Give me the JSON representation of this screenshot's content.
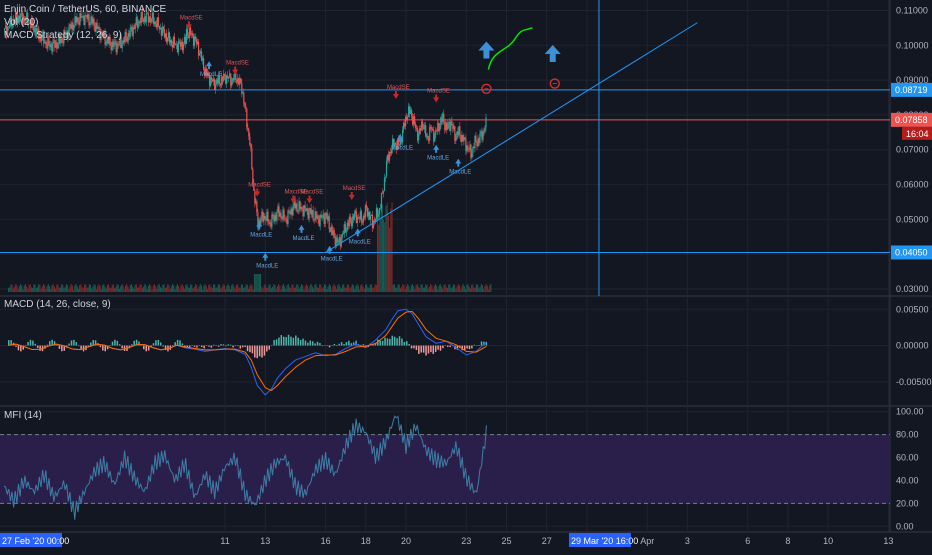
{
  "header": {
    "title": "Enjin Coin / TetherUS, 60, BINANCE",
    "vol_label": "Vol (20)",
    "strategy_label": "MACD Strategy (12, 26, 9)"
  },
  "macd_panel": {
    "title": "MACD (14, 26, close, 9)"
  },
  "mfi_panel": {
    "title": "MFI (14)"
  },
  "colors": {
    "background": "#131722",
    "grid": "#1f2430",
    "up": "#26a69a",
    "down": "#ef5350",
    "line_blue": "#2196f3",
    "macd_line": "#2962ff",
    "signal_line": "#ff6d00",
    "mfi_line": "#3d7ea6",
    "mfi_band": "#2a1f4a",
    "annotation_green": "#00e600",
    "arrow_blue": "#3d8fd6",
    "red_price": "#b71c1c",
    "badge_dark": "#ffffff"
  },
  "chart_data": [
    {
      "type": "candlestick",
      "symbol": "Enjin Coin / TetherUS",
      "interval": "60",
      "exchange": "BINANCE",
      "ylim": [
        0.028,
        0.113
      ],
      "yticks": [
        "0.11000",
        "0.10000",
        "0.09000",
        "0.08000",
        "0.07000",
        "0.06000",
        "0.05000",
        "0.04000",
        "0.03000"
      ],
      "ytick_values": [
        0.11,
        0.1,
        0.09,
        0.08,
        0.07,
        0.06,
        0.05,
        0.04,
        0.03
      ],
      "xticks": [
        "27 Feb '20",
        "11",
        "13",
        "16",
        "18",
        "20",
        "23",
        "25",
        "27",
        "29 Mar '20",
        "Apr",
        "3",
        "6",
        "8",
        "10",
        "13"
      ],
      "xtick_days": [
        0,
        11,
        13,
        16,
        18,
        20,
        23,
        25,
        27,
        29,
        32,
        34,
        37,
        39,
        41,
        44
      ],
      "x_label_first": "27 Feb '20  00:00",
      "x_label_cursor": "29 Mar '20  16:00",
      "price_path_days": [
        9,
        9.3,
        9.6,
        10,
        10.4,
        10.8,
        11,
        11.3,
        11.5,
        11.8,
        12,
        12.2,
        12.4,
        12.6,
        12.9,
        13.2,
        13.6,
        14,
        14.4,
        14.8,
        15.2,
        15.6,
        16,
        16.3,
        16.6,
        17,
        17.4,
        17.8,
        18,
        18.3,
        18.6,
        18.8,
        19,
        19.2,
        19.4,
        19.6,
        19.8,
        20,
        20.2,
        20.4,
        20.6,
        20.8,
        21,
        21.2,
        21.4,
        21.6,
        21.8,
        22,
        22.2,
        22.4,
        22.6,
        22.8,
        23,
        23.2,
        23.4,
        23.6,
        23.8,
        24
      ],
      "price_path_values": [
        0.104,
        0.103,
        0.1,
        0.092,
        0.089,
        0.09,
        0.091,
        0.09,
        0.091,
        0.088,
        0.08,
        0.072,
        0.058,
        0.049,
        0.051,
        0.049,
        0.052,
        0.05,
        0.054,
        0.053,
        0.052,
        0.05,
        0.051,
        0.046,
        0.043,
        0.048,
        0.051,
        0.05,
        0.053,
        0.049,
        0.052,
        0.057,
        0.066,
        0.07,
        0.072,
        0.071,
        0.075,
        0.08,
        0.081,
        0.077,
        0.074,
        0.078,
        0.073,
        0.076,
        0.074,
        0.077,
        0.079,
        0.076,
        0.078,
        0.074,
        0.075,
        0.073,
        0.071,
        0.069,
        0.072,
        0.073,
        0.075,
        0.078
      ],
      "horizontal_levels": [
        {
          "value": 0.08719,
          "label": "0.08719",
          "color": "#2196f3"
        },
        {
          "value": 0.07858,
          "label": "0.07858",
          "color": "#ef5350"
        },
        {
          "value": 0.0405,
          "label": "0.04050",
          "color": "#2196f3"
        }
      ],
      "countdown": "16:04",
      "trendline": {
        "from_day": 16,
        "from_value": 0.0405,
        "to_day": 34.5,
        "to_value": 0.1065
      },
      "crosshair": {
        "day": 29.6,
        "value": 0.08719
      },
      "volume_ylim": [
        0,
        1
      ]
    },
    {
      "type": "line",
      "title": "MACD (14, 26, close, 9)",
      "ylim": [
        -0.0075,
        0.006
      ],
      "yticks": [
        "0.00500",
        "0.00000",
        "-0.00500"
      ],
      "ytick_values": [
        0.005,
        0.0,
        -0.005
      ],
      "x": [
        9,
        9.5,
        10,
        10.5,
        11,
        11.5,
        12,
        12.3,
        12.6,
        13,
        13.3,
        13.6,
        14,
        14.5,
        15,
        15.5,
        16,
        16.5,
        17,
        17.5,
        18,
        18.5,
        19,
        19.3,
        19.6,
        20,
        20.3,
        20.6,
        21,
        21.5,
        22,
        22.5,
        23,
        23.5,
        24
      ],
      "series": [
        {
          "values": [
            -0.0003,
            -0.0005,
            -0.0008,
            -0.0006,
            -0.0004,
            -0.0006,
            -0.0012,
            -0.003,
            -0.0055,
            -0.0068,
            -0.006,
            -0.0045,
            -0.0032,
            -0.002,
            -0.0015,
            -0.001,
            -0.0014,
            -0.0012,
            -0.0004,
            0.0002,
            -0.0003,
            0.0008,
            0.0022,
            0.0036,
            0.0048,
            0.005,
            0.0044,
            0.003,
            0.0012,
            0.0003,
            0.0006,
            -0.0003,
            -0.0013,
            -0.0008,
            0.0005
          ]
        },
        {
          "values": [
            -0.0002,
            -0.0004,
            -0.0006,
            -0.0006,
            -0.0005,
            -0.0005,
            -0.0009,
            -0.002,
            -0.004,
            -0.0058,
            -0.0062,
            -0.0055,
            -0.0043,
            -0.003,
            -0.002,
            -0.0014,
            -0.0013,
            -0.0013,
            -0.0008,
            -0.0002,
            -0.0001,
            0.0003,
            0.0014,
            0.0026,
            0.0038,
            0.0046,
            0.0047,
            0.0038,
            0.0022,
            0.001,
            0.0006,
            0.0001,
            -0.0008,
            -0.0009,
            -0.0001
          ]
        }
      ]
    },
    {
      "type": "line",
      "title": "MFI (14)",
      "ylim": [
        -5,
        105
      ],
      "yticks": [
        "100.00",
        "80.00",
        "60.00",
        "40.00",
        "20.00",
        "0.00"
      ],
      "ytick_values": [
        100,
        80,
        60,
        40,
        20,
        0
      ],
      "bands": [
        20,
        80
      ],
      "x": [
        0,
        0.5,
        1,
        1.5,
        2,
        2.5,
        3,
        3.5,
        4,
        4.5,
        5,
        5.5,
        6,
        6.5,
        7,
        7.5,
        8,
        8.5,
        9,
        9.5,
        10,
        10.5,
        11,
        11.5,
        12,
        12.5,
        13,
        13.5,
        14,
        14.5,
        15,
        15.5,
        16,
        16.5,
        17,
        17.5,
        18,
        18.5,
        19,
        19.5,
        20,
        20.5,
        21,
        21.5,
        22,
        22.5,
        23,
        23.5,
        24
      ],
      "values": [
        35,
        22,
        40,
        30,
        45,
        25,
        38,
        12,
        30,
        48,
        55,
        36,
        60,
        42,
        30,
        55,
        62,
        40,
        55,
        25,
        45,
        30,
        52,
        60,
        28,
        18,
        40,
        55,
        60,
        35,
        28,
        50,
        58,
        45,
        70,
        88,
        82,
        60,
        74,
        98,
        70,
        88,
        66,
        58,
        55,
        70,
        42,
        28,
        82
      ]
    }
  ],
  "signals": [
    {
      "day": 9.2,
      "value": 0.106,
      "kind": "sell",
      "label": "MacdSE"
    },
    {
      "day": 10.2,
      "value": 0.094,
      "kind": "buy",
      "label": "MacdLE"
    },
    {
      "day": 11.5,
      "value": 0.093,
      "kind": "sell",
      "label": "MacdSE"
    },
    {
      "day": 12.6,
      "value": 0.058,
      "kind": "sell",
      "label": "MacdSE"
    },
    {
      "day": 12.7,
      "value": 0.048,
      "kind": "buy",
      "label": "MacdLE"
    },
    {
      "day": 13.0,
      "value": 0.039,
      "kind": "buy",
      "label": "MacdLE"
    },
    {
      "day": 14.4,
      "value": 0.056,
      "kind": "sell",
      "label": "MacdSE"
    },
    {
      "day": 14.8,
      "value": 0.047,
      "kind": "buy",
      "label": "MacdLE"
    },
    {
      "day": 15.2,
      "value": 0.056,
      "kind": "sell",
      "label": "MacdSE"
    },
    {
      "day": 16.2,
      "value": 0.041,
      "kind": "buy",
      "label": "MacdLE"
    },
    {
      "day": 17.3,
      "value": 0.057,
      "kind": "sell",
      "label": "MacdSE"
    },
    {
      "day": 17.6,
      "value": 0.046,
      "kind": "buy",
      "label": "MacdLE"
    },
    {
      "day": 19.5,
      "value": 0.086,
      "kind": "sell",
      "label": "MacdSE"
    },
    {
      "day": 19.7,
      "value": 0.073,
      "kind": "buy",
      "label": "MacdLE"
    },
    {
      "day": 21.5,
      "value": 0.085,
      "kind": "sell",
      "label": "MacdSE"
    },
    {
      "day": 21.5,
      "value": 0.07,
      "kind": "buy",
      "label": "MacdLE"
    },
    {
      "day": 22.6,
      "value": 0.066,
      "kind": "buy",
      "label": "MacdLE"
    }
  ],
  "annotations": {
    "arrows_up": [
      {
        "day": 24,
        "value": 0.0985
      },
      {
        "day": 27.3,
        "value": 0.0975
      }
    ],
    "target_circles": [
      {
        "day": 24,
        "value": 0.0875
      },
      {
        "day": 27.4,
        "value": 0.089
      }
    ]
  }
}
